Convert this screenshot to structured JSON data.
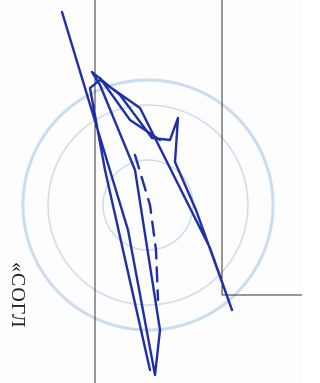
{
  "document": {
    "side_text": "«СОГЛ"
  }
}
